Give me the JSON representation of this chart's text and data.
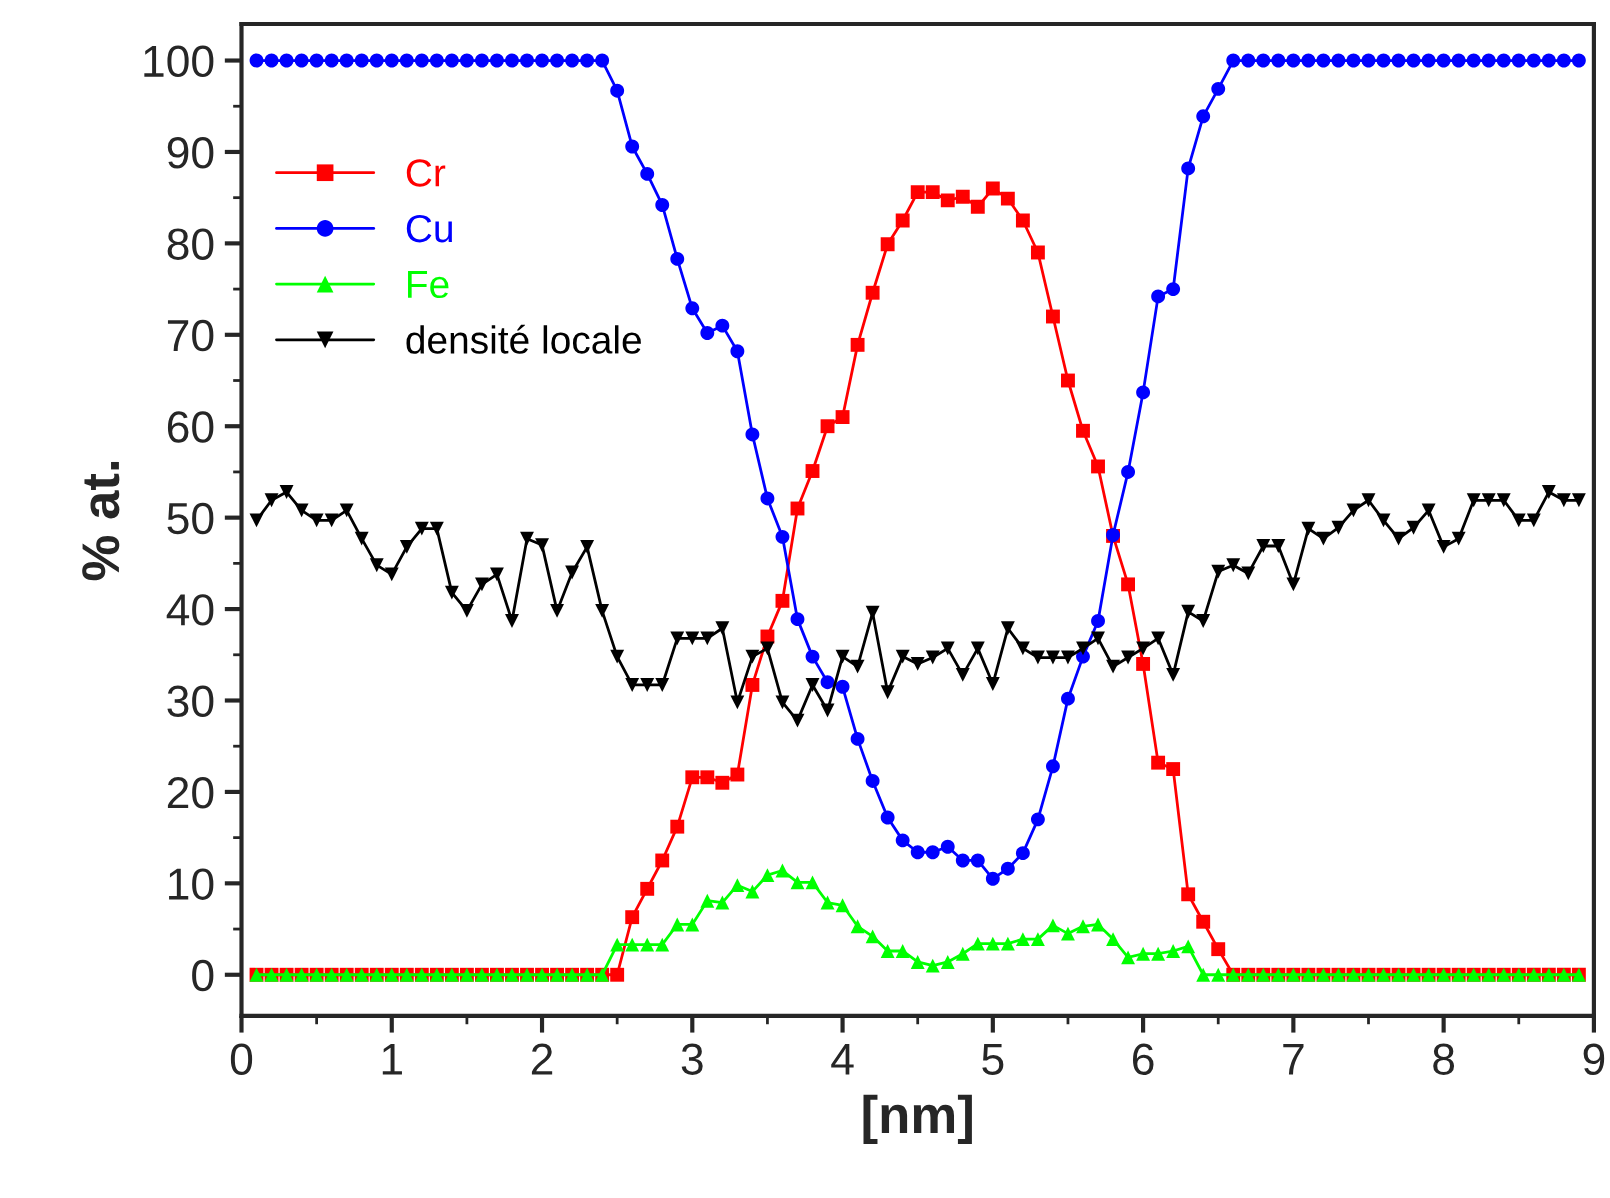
{
  "chart_data": {
    "type": "line",
    "xlabel": "[nm]",
    "ylabel": "% at.",
    "x": [
      0.1,
      0.2,
      0.3,
      0.4,
      0.5,
      0.6,
      0.7,
      0.8,
      0.9,
      1.0,
      1.1,
      1.2,
      1.3,
      1.4,
      1.5,
      1.6,
      1.7,
      1.8,
      1.9,
      2.0,
      2.1,
      2.2,
      2.3,
      2.4,
      2.5,
      2.6,
      2.7,
      2.8,
      2.9,
      3.0,
      3.1,
      3.2,
      3.3,
      3.4,
      3.5,
      3.6,
      3.7,
      3.8,
      3.9,
      4.0,
      4.1,
      4.2,
      4.3,
      4.4,
      4.5,
      4.6,
      4.7,
      4.8,
      4.9,
      5.0,
      5.1,
      5.2,
      5.3,
      5.4,
      5.5,
      5.6,
      5.7,
      5.8,
      5.9,
      6.0,
      6.1,
      6.2,
      6.3,
      6.4,
      6.5,
      6.6,
      6.7,
      6.8,
      6.9,
      7.0,
      7.1,
      7.2,
      7.3,
      7.4,
      7.5,
      7.6,
      7.7,
      7.8,
      7.9,
      8.0,
      8.1,
      8.2,
      8.3,
      8.4,
      8.5,
      8.6,
      8.7,
      8.8,
      8.9
    ],
    "series": [
      {
        "name": "Cr",
        "color": "#ff0000",
        "marker": "square",
        "values": [
          0,
          0,
          0,
          0,
          0,
          0,
          0,
          0,
          0,
          0,
          0,
          0,
          0,
          0,
          0,
          0,
          0,
          0,
          0,
          0,
          0,
          0,
          0,
          0,
          0,
          6.3,
          9.4,
          12.5,
          16.2,
          21.6,
          21.6,
          21.0,
          21.9,
          31.7,
          37.0,
          40.9,
          51.0,
          55.1,
          60.0,
          61.0,
          68.9,
          74.6,
          79.9,
          82.5,
          85.6,
          85.6,
          84.7,
          85.1,
          84.0,
          86.0,
          84.9,
          82.5,
          79.0,
          72.0,
          65.0,
          59.5,
          55.6,
          48.0,
          42.7,
          34.0,
          23.2,
          22.5,
          8.8,
          5.8,
          2.8,
          0,
          0,
          0,
          0,
          0,
          0,
          0,
          0,
          0,
          0,
          0,
          0,
          0,
          0,
          0,
          0,
          0,
          0,
          0,
          0,
          0,
          0,
          0,
          0
        ]
      },
      {
        "name": "Cu",
        "color": "#0000ff",
        "marker": "circle",
        "values": [
          100,
          100,
          100,
          100,
          100,
          100,
          100,
          100,
          100,
          100,
          100,
          100,
          100,
          100,
          100,
          100,
          100,
          100,
          100,
          100,
          100,
          100,
          100,
          100,
          96.7,
          90.6,
          87.6,
          84.2,
          78.3,
          72.9,
          70.2,
          71.0,
          68.2,
          59.1,
          52.1,
          47.9,
          38.9,
          34.8,
          32.0,
          31.5,
          25.8,
          21.2,
          17.2,
          14.7,
          13.4,
          13.4,
          14.0,
          12.5,
          12.5,
          10.5,
          11.6,
          13.3,
          17.0,
          22.8,
          30.2,
          34.8,
          38.7,
          48.1,
          55.0,
          63.7,
          74.2,
          75.0,
          88.2,
          93.9,
          96.9,
          100,
          100,
          100,
          100,
          100,
          100,
          100,
          100,
          100,
          100,
          100,
          100,
          100,
          100,
          100,
          100,
          100,
          100,
          100,
          100,
          100,
          100,
          100,
          100
        ]
      },
      {
        "name": "Fe",
        "color": "#00ff00",
        "marker": "triangle",
        "values": [
          0,
          0,
          0,
          0,
          0,
          0,
          0,
          0,
          0,
          0,
          0,
          0,
          0,
          0,
          0,
          0,
          0,
          0,
          0,
          0,
          0,
          0,
          0,
          0,
          3.3,
          3.3,
          3.3,
          3.3,
          5.5,
          5.5,
          8.1,
          7.9,
          9.8,
          9.1,
          10.9,
          11.4,
          10.1,
          10.1,
          7.9,
          7.6,
          5.3,
          4.2,
          2.6,
          2.6,
          1.4,
          1.0,
          1.4,
          2.3,
          3.4,
          3.4,
          3.4,
          3.9,
          3.9,
          5.4,
          4.5,
          5.3,
          5.5,
          3.9,
          1.9,
          2.3,
          2.3,
          2.6,
          3.1,
          0,
          0,
          0,
          0,
          0,
          0,
          0,
          0,
          0,
          0,
          0,
          0,
          0,
          0,
          0,
          0,
          0,
          0,
          0,
          0,
          0,
          0,
          0,
          0,
          0,
          0
        ]
      },
      {
        "name": "densité locale",
        "color": "#000000",
        "marker": "triangle_down",
        "values": [
          49.7,
          51.9,
          52.8,
          50.8,
          49.7,
          49.7,
          50.8,
          47.7,
          44.8,
          43.8,
          46.8,
          48.8,
          48.8,
          41.8,
          39.8,
          42.7,
          43.8,
          38.7,
          47.7,
          47.0,
          39.8,
          44.0,
          46.8,
          39.8,
          34.8,
          31.7,
          31.7,
          31.7,
          36.8,
          36.8,
          36.8,
          37.9,
          29.8,
          34.8,
          35.7,
          29.8,
          27.8,
          31.7,
          28.9,
          34.8,
          33.7,
          39.6,
          30.9,
          34.8,
          34.0,
          34.7,
          35.7,
          32.8,
          35.7,
          31.8,
          37.9,
          35.7,
          34.7,
          34.7,
          34.7,
          35.7,
          36.8,
          33.7,
          34.7,
          35.7,
          36.8,
          32.8,
          39.7,
          38.7,
          44.1,
          44.8,
          43.9,
          46.9,
          46.9,
          42.7,
          48.8,
          47.7,
          48.9,
          50.8,
          51.9,
          49.7,
          47.7,
          48.9,
          50.8,
          46.8,
          47.7,
          51.9,
          51.9,
          51.9,
          49.7,
          49.7,
          52.8,
          51.9,
          51.9
        ]
      }
    ],
    "xlim": [
      0,
      9
    ],
    "xticks": [
      0,
      1,
      2,
      3,
      4,
      5,
      6,
      7,
      8,
      9
    ],
    "ylim": [
      -4.5,
      104
    ],
    "yticks": [
      0,
      10,
      20,
      30,
      40,
      50,
      60,
      70,
      80,
      90,
      100
    ],
    "grid": false,
    "legend": "top left",
    "line_style": "solid"
  }
}
